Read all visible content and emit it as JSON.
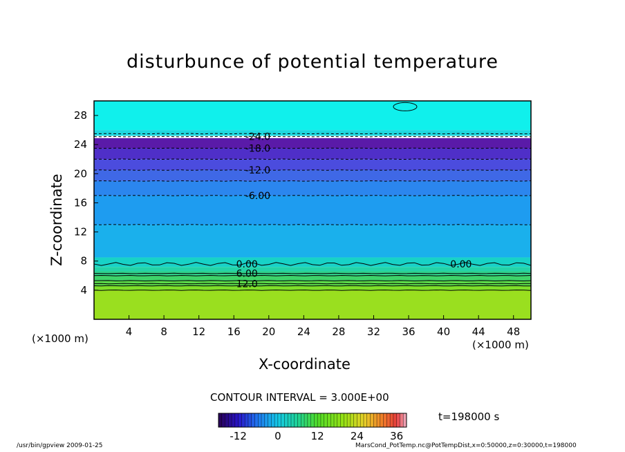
{
  "chart_data": {
    "type": "heatmap",
    "title": "disturbunce of potential temperature",
    "xlabel": "X-coordinate",
    "ylabel": "Z-coordinate",
    "x_unit_left": "(×1000 m)",
    "x_unit_right": "(×1000 m)",
    "xlim": [
      0,
      50
    ],
    "ylim": [
      0,
      30
    ],
    "x_ticks": [
      "4",
      "8",
      "12",
      "16",
      "20",
      "24",
      "28",
      "32",
      "36",
      "40",
      "44",
      "48"
    ],
    "y_ticks": [
      "4",
      "8",
      "12",
      "16",
      "20",
      "24",
      "28"
    ],
    "bands": [
      {
        "z0": 0.0,
        "z1": 4.0,
        "value": 24,
        "color": "#9adf1f"
      },
      {
        "z0": 4.0,
        "z1": 4.6,
        "value": 21,
        "color": "#7fdf2a"
      },
      {
        "z0": 4.6,
        "z1": 5.3,
        "value": 18,
        "color": "#5bd94a"
      },
      {
        "z0": 5.3,
        "z1": 6.0,
        "value": 15,
        "color": "#3fd36a"
      },
      {
        "z0": 6.0,
        "z1": 6.6,
        "value": 12,
        "color": "#2fd08a"
      },
      {
        "z0": 6.6,
        "z1": 7.2,
        "value": 9,
        "color": "#24d3a8"
      },
      {
        "z0": 7.2,
        "z1": 8.5,
        "value": 3,
        "color": "#18d2c7"
      },
      {
        "z0": 8.5,
        "z1": 13.0,
        "value": -3,
        "color": "#1ab0ec"
      },
      {
        "z0": 13.0,
        "z1": 17.0,
        "value": -6,
        "color": "#1e9cf0"
      },
      {
        "z0": 17.0,
        "z1": 19.0,
        "value": -9,
        "color": "#2b86ee"
      },
      {
        "z0": 19.0,
        "z1": 20.5,
        "value": -12,
        "color": "#3f68e6"
      },
      {
        "z0": 20.5,
        "z1": 22.0,
        "value": -15,
        "color": "#4b4cde"
      },
      {
        "z0": 22.0,
        "z1": 23.5,
        "value": -18,
        "color": "#4f2fc8"
      },
      {
        "z0": 23.5,
        "z1": 24.9,
        "value": -21,
        "color": "#5a1aa8"
      },
      {
        "z0": 24.9,
        "z1": 25.2,
        "value": 36,
        "color": "#ffffff"
      },
      {
        "z0": 25.2,
        "z1": 26.0,
        "value": 0,
        "color": "#1fd8e0"
      },
      {
        "z0": 26.0,
        "z1": 30.0,
        "value": 3,
        "color": "#10f0ec"
      }
    ],
    "contours": [
      {
        "z": 4.0,
        "value": 24,
        "dashed": false,
        "label": ""
      },
      {
        "z": 4.6,
        "value": 21,
        "dashed": false,
        "label": ""
      },
      {
        "z": 5.3,
        "value": 18,
        "dashed": false,
        "label": ""
      },
      {
        "z": 6.0,
        "value": 15,
        "dashed": false,
        "label": ""
      },
      {
        "z": 4.9,
        "value": 12,
        "dashed": false,
        "label": "12.0"
      },
      {
        "z": 6.3,
        "value": 6,
        "dashed": false,
        "label": "6.00"
      },
      {
        "z": 7.6,
        "value": 0,
        "dashed": false,
        "label": "0.00"
      },
      {
        "z": 13.0,
        "value": -3,
        "dashed": true,
        "label": ""
      },
      {
        "z": 17.0,
        "value": -6,
        "dashed": true,
        "label": "-6.00"
      },
      {
        "z": 19.0,
        "value": -9,
        "dashed": true,
        "label": ""
      },
      {
        "z": 20.5,
        "value": -12,
        "dashed": true,
        "label": "-12.0"
      },
      {
        "z": 22.0,
        "value": -15,
        "dashed": true,
        "label": ""
      },
      {
        "z": 23.5,
        "value": -18,
        "dashed": true,
        "label": "-18.0"
      },
      {
        "z": 25.1,
        "value": -24,
        "dashed": true,
        "label": "-24.0"
      },
      {
        "z": 25.5,
        "value": 0,
        "dashed": true,
        "label": ""
      }
    ],
    "colorbar": {
      "range": [
        -18,
        39
      ],
      "ticks": [
        "-12",
        "0",
        "12",
        "24",
        "36"
      ],
      "tick_values": [
        -12,
        0,
        12,
        24,
        36
      ]
    }
  },
  "contour_interval": "CONTOUR INTERVAL = 3.000E+00",
  "time_label": "t=198000 s",
  "footer_left": "/usr/bin/gpview   2009-01-25",
  "footer_right": "MarsCond_PotTemp.nc@PotTempDist,x=0:50000,z=0:30000,t=198000"
}
